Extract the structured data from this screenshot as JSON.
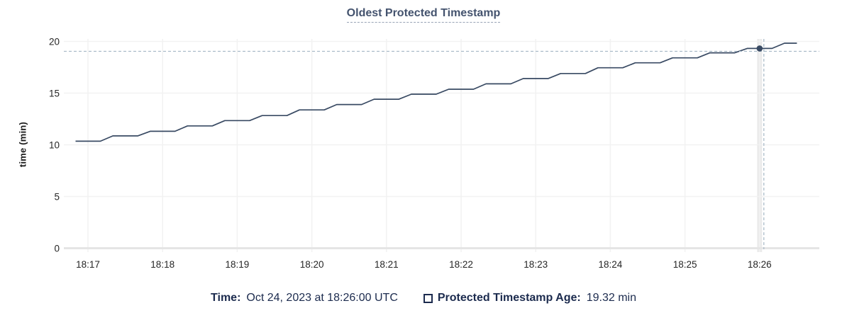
{
  "chart_data": {
    "type": "line",
    "title": "Oldest Protected Timestamp",
    "xlabel": "",
    "ylabel": "time (min)",
    "ylim": [
      0,
      20
    ],
    "yticks": [
      0,
      5,
      10,
      15,
      20
    ],
    "xticks": [
      "18:17",
      "18:18",
      "18:19",
      "18:20",
      "18:21",
      "18:22",
      "18:23",
      "18:24",
      "18:25",
      "18:26"
    ],
    "grid": "on",
    "legend_position": "bottom-center",
    "x": [
      "18:16:50",
      "18:17:00",
      "18:17:10",
      "18:17:20",
      "18:17:30",
      "18:17:40",
      "18:17:50",
      "18:18:00",
      "18:18:10",
      "18:18:20",
      "18:18:30",
      "18:18:40",
      "18:18:50",
      "18:19:00",
      "18:19:10",
      "18:19:20",
      "18:19:30",
      "18:19:40",
      "18:19:50",
      "18:20:00",
      "18:20:10",
      "18:20:20",
      "18:20:30",
      "18:20:40",
      "18:20:50",
      "18:21:00",
      "18:21:10",
      "18:21:20",
      "18:21:30",
      "18:21:40",
      "18:21:50",
      "18:22:00",
      "18:22:10",
      "18:22:20",
      "18:22:30",
      "18:22:40",
      "18:22:50",
      "18:23:00",
      "18:23:10",
      "18:23:20",
      "18:23:30",
      "18:23:40",
      "18:23:50",
      "18:24:00",
      "18:24:10",
      "18:24:20",
      "18:24:30",
      "18:24:40",
      "18:24:50",
      "18:25:00",
      "18:25:10",
      "18:25:20",
      "18:25:30",
      "18:25:40",
      "18:25:50",
      "18:26:00",
      "18:26:10",
      "18:26:20",
      "18:26:30"
    ],
    "series": [
      {
        "name": "Protected Timestamp Age",
        "values": [
          10.35,
          10.35,
          10.35,
          10.86,
          10.86,
          10.86,
          11.31,
          11.31,
          11.31,
          11.83,
          11.83,
          11.83,
          12.34,
          12.34,
          12.34,
          12.83,
          12.83,
          12.83,
          13.38,
          13.38,
          13.38,
          13.9,
          13.9,
          13.9,
          14.41,
          14.41,
          14.41,
          14.9,
          14.9,
          14.9,
          15.38,
          15.38,
          15.38,
          15.9,
          15.9,
          15.9,
          16.41,
          16.41,
          16.41,
          16.9,
          16.9,
          16.9,
          17.45,
          17.45,
          17.45,
          17.93,
          17.93,
          17.93,
          18.41,
          18.41,
          18.41,
          18.9,
          18.9,
          18.9,
          19.32,
          19.32,
          19.32,
          19.83,
          19.83
        ]
      }
    ],
    "hover": {
      "x": "18:26:00",
      "y": 19.32
    }
  },
  "legend": {
    "time_label": "Time:",
    "time_value": "Oct 24, 2023 at 18:26:00 UTC",
    "series_label": "Protected Timestamp Age:",
    "series_value": "19.32 min"
  },
  "colors": {
    "series_line": "#394a63",
    "title_text": "#44536e",
    "legend_text": "#1c2b4e",
    "crosshair": "#a5b7c5",
    "gridline": "#f2f2f2",
    "axis_line": "#e5e5e5",
    "tick_text": "#262626"
  }
}
